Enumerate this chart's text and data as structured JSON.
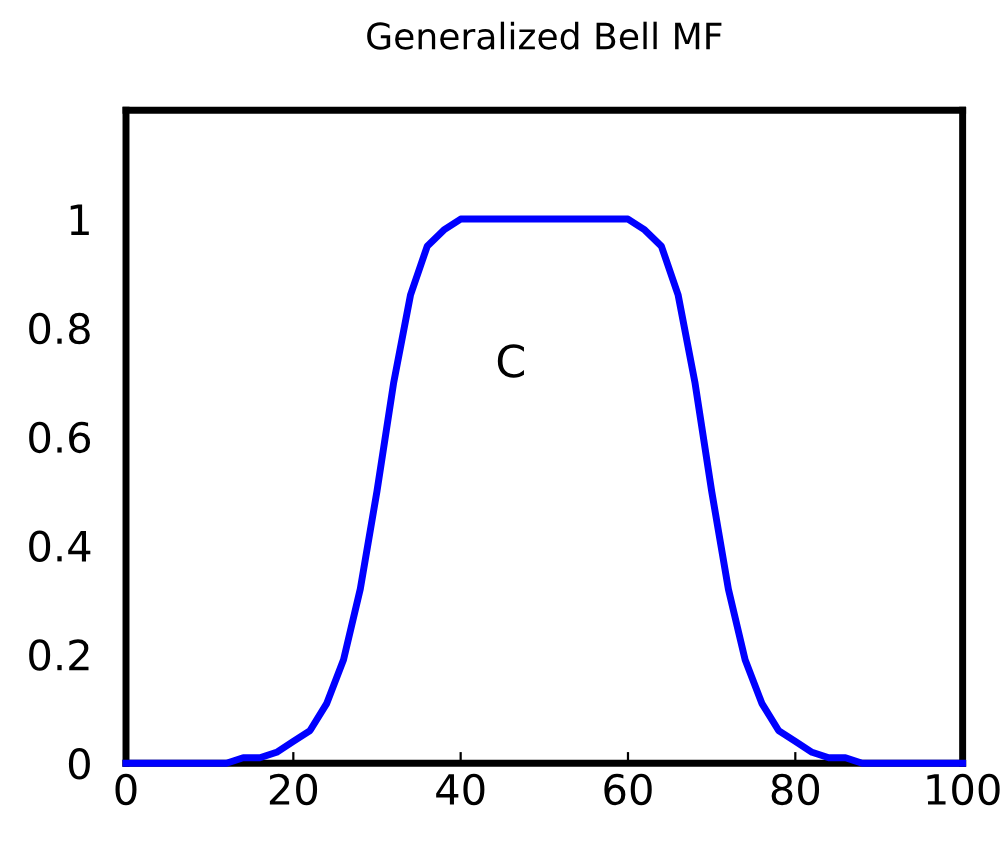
{
  "chart_data": {
    "type": "line",
    "title": "Generalized Bell MF",
    "x": [
      0,
      2,
      4,
      6,
      8,
      10,
      12,
      14,
      16,
      18,
      20,
      22,
      24,
      26,
      28,
      30,
      32,
      34,
      36,
      38,
      40,
      42,
      44,
      46,
      48,
      50,
      52,
      54,
      56,
      58,
      60,
      62,
      64,
      66,
      68,
      70,
      72,
      74,
      76,
      78,
      80,
      82,
      84,
      86,
      88,
      90,
      92,
      94,
      96,
      98,
      100
    ],
    "series": [
      {
        "color": "#0000ff",
        "values": [
          0,
          0,
          0,
          0,
          0,
          0,
          0,
          0.01,
          0.01,
          0.02,
          0.04,
          0.06,
          0.11,
          0.19,
          0.32,
          0.5,
          0.7,
          0.86,
          0.95,
          0.98,
          1,
          1,
          1,
          1,
          1,
          1,
          1,
          1,
          1,
          1,
          1,
          0.98,
          0.95,
          0.86,
          0.7,
          0.5,
          0.32,
          0.19,
          0.11,
          0.06,
          0.04,
          0.02,
          0.01,
          0.01,
          0,
          0,
          0,
          0,
          0,
          0,
          0
        ]
      }
    ],
    "annotations": [
      "C"
    ],
    "xlim": [
      0,
      100
    ],
    "xticks": [
      0,
      20,
      40,
      60,
      80,
      100
    ],
    "ylim": [
      0,
      1.2
    ],
    "yticks": [
      0,
      0.2,
      0.4,
      0.6,
      0.8,
      1
    ],
    "grid": false,
    "legend": false
  }
}
